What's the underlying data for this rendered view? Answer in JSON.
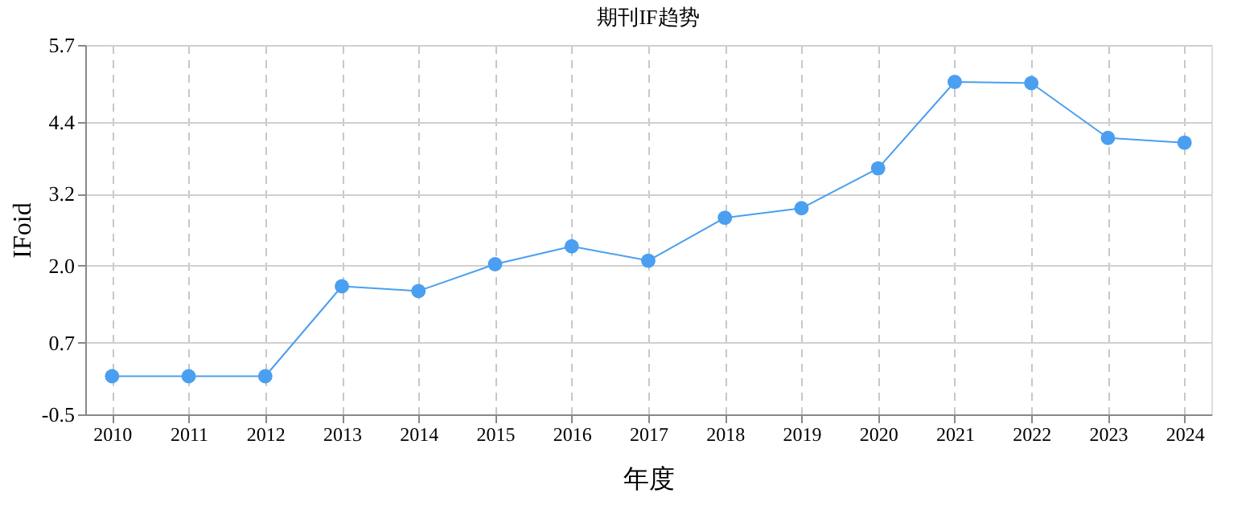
{
  "chart_data": {
    "type": "line",
    "title": "期刊IF趋势",
    "xlabel": "年度",
    "ylabel": "IFoid",
    "categories": [
      "2010",
      "2011",
      "2012",
      "2013",
      "2014",
      "2015",
      "2016",
      "2017",
      "2018",
      "2019",
      "2020",
      "2021",
      "2022",
      "2023",
      "2024"
    ],
    "series": [
      {
        "color": "#4a9ff0",
        "values": [
          0.14,
          0.14,
          0.14,
          1.65,
          1.57,
          2.02,
          2.32,
          2.08,
          2.8,
          2.96,
          3.63,
          5.08,
          5.06,
          4.14,
          4.06
        ]
      }
    ],
    "ylim": [
      -0.5,
      5.7
    ],
    "yticks": [
      -0.5,
      0.7,
      {
        "value": 2.0,
        "label": "2.0"
      },
      3.2,
      4.4,
      5.7
    ],
    "grid": true,
    "marker": "circle",
    "line_style": "solid"
  }
}
